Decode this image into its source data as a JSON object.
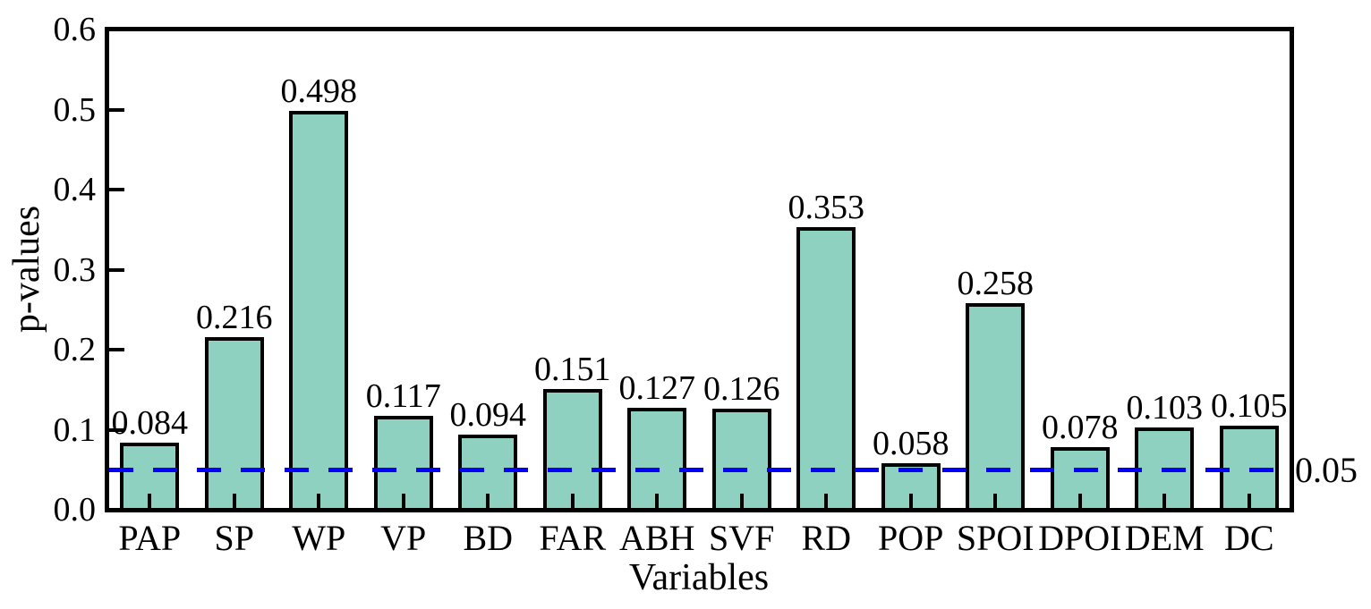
{
  "chart_data": {
    "type": "bar",
    "title": "",
    "xlabel": "Variables",
    "ylabel": "p-values",
    "categories": [
      "PAP",
      "SP",
      "WP",
      "VP",
      "BD",
      "FAR",
      "ABH",
      "SVF",
      "RD",
      "POP",
      "SPOI",
      "DPOI",
      "DEM",
      "DC"
    ],
    "values": [
      0.084,
      0.216,
      0.498,
      0.117,
      0.094,
      0.151,
      0.127,
      0.126,
      0.353,
      0.058,
      0.258,
      0.078,
      0.103,
      0.105
    ],
    "value_labels": [
      "0.084",
      "0.216",
      "0.498",
      "0.117",
      "0.094",
      "0.151",
      "0.127",
      "0.126",
      "0.353",
      "0.058",
      "0.258",
      "0.078",
      "0.103",
      "0.105"
    ],
    "ylim": [
      0.0,
      0.6
    ],
    "ytick_labels": [
      "0.0",
      "0.1",
      "0.2",
      "0.3",
      "0.4",
      "0.5",
      "0.6"
    ],
    "ytick_values": [
      0.0,
      0.1,
      0.2,
      0.3,
      0.4,
      0.5,
      0.6
    ],
    "grid": false,
    "legend": null,
    "frame": "full-box",
    "bar_fill_color": "#8ED1C1",
    "bar_border_color": "#000000",
    "threshold_line": {
      "value": 0.05,
      "label": "0.05",
      "color": "#0000FF",
      "style": "dashed"
    }
  }
}
